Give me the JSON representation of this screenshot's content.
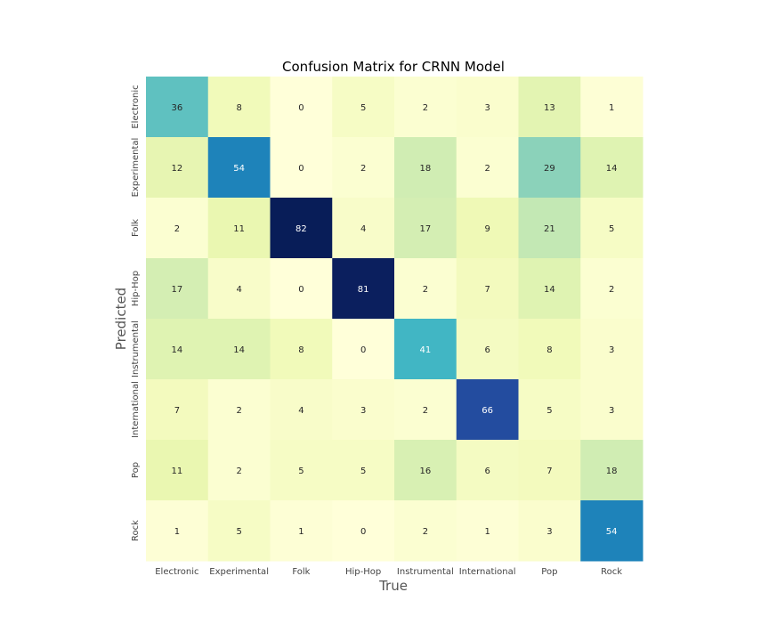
{
  "chart_data": {
    "type": "heatmap",
    "title": "Confusion Matrix for CRNN Model",
    "xlabel": "True",
    "ylabel": "Predicted",
    "x_categories": [
      "Electronic",
      "Experimental",
      "Folk",
      "Hip-Hop",
      "Instrumental",
      "International",
      "Pop",
      "Rock"
    ],
    "y_categories": [
      "Electronic",
      "Experimental",
      "Folk",
      "Hip-Hop",
      "Instrumental",
      "International",
      "Pop",
      "Rock"
    ],
    "values": [
      [
        36,
        8,
        0,
        5,
        2,
        3,
        13,
        1
      ],
      [
        12,
        54,
        0,
        2,
        18,
        2,
        29,
        14
      ],
      [
        2,
        11,
        82,
        4,
        17,
        9,
        21,
        5
      ],
      [
        17,
        4,
        0,
        81,
        2,
        7,
        14,
        2
      ],
      [
        14,
        14,
        8,
        0,
        41,
        6,
        8,
        3
      ],
      [
        7,
        2,
        4,
        3,
        2,
        66,
        5,
        3
      ],
      [
        11,
        2,
        5,
        5,
        16,
        6,
        7,
        18
      ],
      [
        1,
        5,
        1,
        0,
        2,
        1,
        3,
        54
      ]
    ],
    "colormap": "YlGnBu",
    "value_range": [
      0,
      82
    ],
    "grid": false,
    "legend": "none"
  }
}
